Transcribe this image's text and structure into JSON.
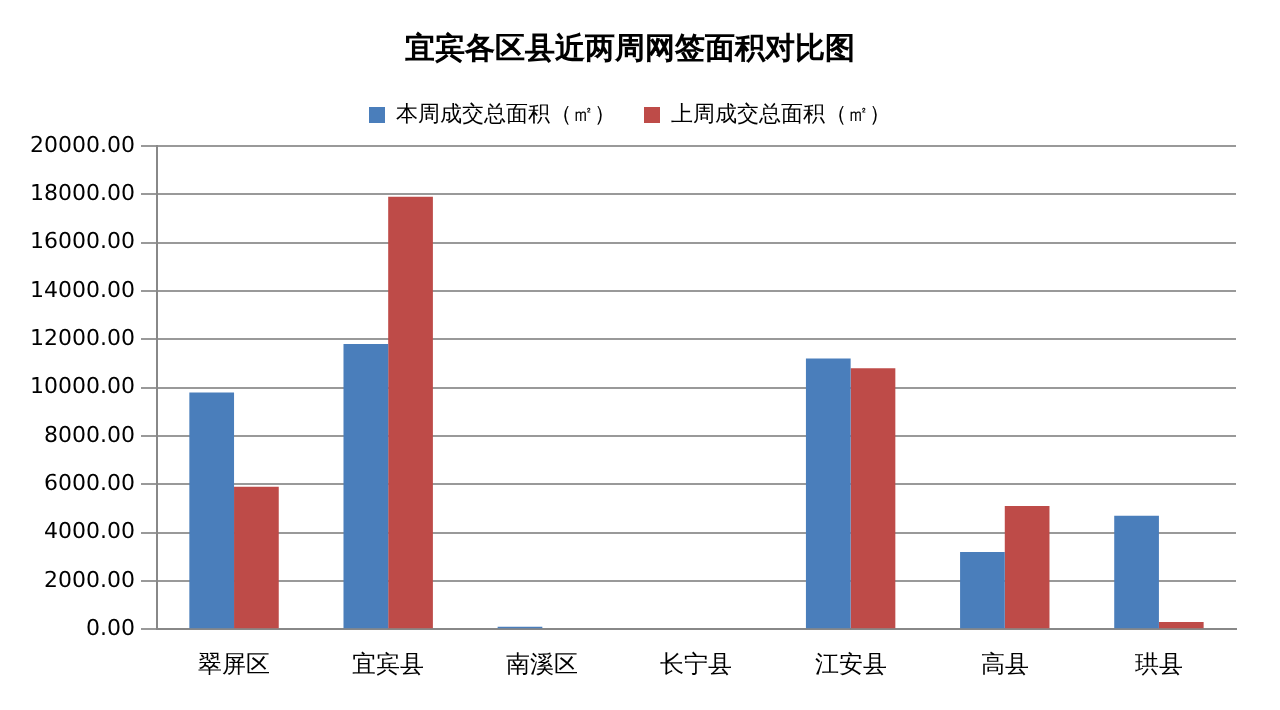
{
  "chart_data": {
    "type": "bar",
    "title": "宜宾各区县近两周网签面积对比图",
    "categories": [
      "翠屏区",
      "宜宾县",
      "南溪区",
      "长宁县",
      "江安县",
      "高县",
      "珙县"
    ],
    "series": [
      {
        "name": "本周成交总面积（㎡）",
        "color": "#4a7ebb",
        "values": [
          9800,
          11800,
          100,
          0,
          11200,
          3200,
          4700
        ]
      },
      {
        "name": "上周成交总面积（㎡）",
        "color": "#be4b48",
        "values": [
          5900,
          17900,
          0,
          0,
          10800,
          5100,
          300
        ]
      }
    ],
    "ylim": [
      0,
      20000
    ],
    "yticks": [
      {
        "value": 0,
        "label": "0.00"
      },
      {
        "value": 2000,
        "label": "2000.00"
      },
      {
        "value": 4000,
        "label": "4000.00"
      },
      {
        "value": 6000,
        "label": "6000.00"
      },
      {
        "value": 8000,
        "label": "8000.00"
      },
      {
        "value": 10000,
        "label": "10000.00"
      },
      {
        "value": 12000,
        "label": "12000.00"
      },
      {
        "value": 14000,
        "label": "14000.00"
      },
      {
        "value": 16000,
        "label": "16000.00"
      },
      {
        "value": 18000,
        "label": "18000.00"
      },
      {
        "value": 20000,
        "label": "20000.00"
      }
    ],
    "grid": "y",
    "legend": "top"
  }
}
